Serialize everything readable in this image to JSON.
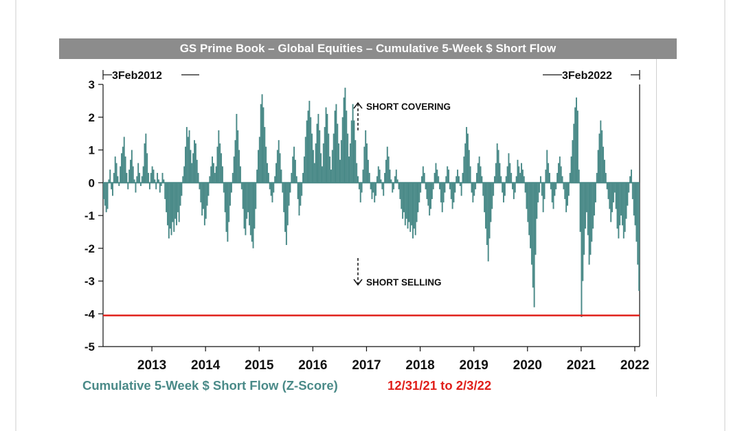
{
  "chart_data": {
    "type": "bar",
    "title": "GS Prime Book – Global Equities – Cumulative 5-Week $ Short Flow",
    "ylim": [
      -5,
      3
    ],
    "yticks": [
      3,
      2,
      1,
      0,
      -1,
      -2,
      -3,
      -4,
      -5
    ],
    "ytick_labels": [
      "3",
      "2",
      "1",
      "0",
      "-1",
      "-2",
      "-3",
      "-4",
      "-5"
    ],
    "xlim": [
      2012.09,
      2022.09
    ],
    "xticks": [
      2013,
      2014,
      2015,
      2016,
      2017,
      2018,
      2019,
      2020,
      2021,
      2022
    ],
    "xtick_labels": [
      "2013",
      "2014",
      "2015",
      "2016",
      "2017",
      "2018",
      "2019",
      "2020",
      "2021",
      "2022"
    ],
    "start_label": "3Feb2012",
    "end_label": "3Feb2022",
    "reference_line": {
      "y": -4.05,
      "color": "#e0201b"
    },
    "annotations": {
      "covering": "SHORT COVERING",
      "selling": "SHORT SELLING"
    },
    "legend": [
      {
        "label": "Cumulative 5-Week $ Short Flow (Z-Score)",
        "color": "#4a8a88"
      },
      {
        "label": "12/31/21 to 2/3/22",
        "color": "#e0201b"
      }
    ],
    "bar_color": "#4a8a88",
    "series": [
      {
        "name": "Cumulative 5-Week $ Short Flow (Z-Score)",
        "frequency": "weekly",
        "start": 2012.09,
        "values": [
          -0.5,
          -0.7,
          -0.9,
          -0.8,
          0.1,
          0.4,
          -0.2,
          -0.4,
          0.3,
          0.8,
          0.6,
          0.2,
          -0.1,
          0.5,
          0.9,
          1.1,
          1.4,
          0.8,
          0.3,
          -0.2,
          0.4,
          0.7,
          1.0,
          0.5,
          0.1,
          -0.3,
          0.2,
          0.6,
          0.3,
          -0.1,
          0.2,
          0.5,
          1.2,
          1.5,
          0.9,
          0.3,
          -0.2,
          0.3,
          0.5,
          0.4,
          0.1,
          -0.2,
          0.3,
          0.1,
          -0.3,
          -0.1,
          0.3,
          0.1,
          -0.5,
          -0.9,
          -1.3,
          -1.7,
          -1.4,
          -1.6,
          -1.2,
          -1.5,
          -1.1,
          -1.3,
          -0.9,
          -1.2,
          -0.7,
          -0.4,
          0.2,
          0.5,
          1.1,
          1.7,
          1.4,
          1.6,
          1.0,
          0.6,
          0.9,
          1.3,
          1.2,
          0.7,
          0.3,
          -0.2,
          -0.6,
          -1.0,
          -0.8,
          -1.3,
          -1.1,
          -0.7,
          -0.4,
          0.2,
          0.5,
          0.8,
          0.6,
          0.3,
          0.5,
          1.1,
          1.6,
          1.2,
          0.9,
          0.5,
          -0.3,
          -0.9,
          -1.5,
          -1.8,
          -1.2,
          -0.7,
          -0.3,
          0.3,
          0.8,
          1.3,
          2.1,
          1.6,
          1.0,
          0.5,
          -0.2,
          -0.8,
          -1.4,
          -1.6,
          -1.1,
          -0.9,
          -1.3,
          -1.6,
          -1.8,
          -2.0,
          -1.4,
          -0.8,
          0.4,
          1.0,
          1.4,
          2.4,
          2.7,
          2.3,
          1.7,
          1.1,
          0.6,
          0.3,
          -0.2,
          -0.4,
          -0.6,
          -0.3,
          0.2,
          0.6,
          1.0,
          1.3,
          0.9,
          0.4,
          -0.3,
          -0.9,
          -1.5,
          -1.9,
          -1.3,
          -0.7,
          -0.3,
          0.3,
          0.8,
          1.1,
          0.7,
          0.2,
          -0.5,
          -1.0,
          -0.7,
          -0.4,
          0.3,
          0.8,
          1.4,
          1.9,
          2.2,
          2.5,
          2.0,
          1.5,
          1.0,
          0.6,
          1.2,
          1.8,
          2.1,
          1.6,
          0.9,
          0.5,
          1.2,
          1.7,
          2.3,
          2.1,
          1.5,
          0.8,
          0.4,
          1.0,
          1.5,
          2.2,
          2.4,
          1.8,
          1.2,
          0.7,
          1.3,
          2.0,
          2.6,
          2.9,
          2.2,
          1.5,
          0.8,
          1.2,
          1.9,
          2.4,
          1.9,
          1.3,
          0.6,
          0.2,
          -0.2,
          -0.6,
          -0.3,
          0.4,
          1.1,
          1.6,
          1.2,
          0.7,
          0.3,
          -0.2,
          -0.5,
          -0.3,
          -0.6,
          -0.4,
          0.2,
          0.5,
          0.4,
          0.1,
          -0.2,
          -0.4,
          0.3,
          0.7,
          1.1,
          0.8,
          0.4,
          0.1,
          -0.3,
          -0.2,
          0.2,
          0.4,
          0.1,
          -0.2,
          -0.5,
          -0.8,
          -1.1,
          -0.9,
          -1.3,
          -1.1,
          -1.4,
          -1.2,
          -1.5,
          -1.3,
          -1.7,
          -1.4,
          -1.6,
          -1.2,
          -0.9,
          -0.6,
          -0.3,
          0.2,
          0.5,
          0.3,
          -0.2,
          -0.5,
          -0.7,
          -1.0,
          -0.8,
          -0.5,
          -0.2,
          0.3,
          0.6,
          0.4,
          0.2,
          -0.2,
          -0.6,
          -0.9,
          -0.6,
          -0.3,
          0.2,
          0.5,
          0.4,
          -0.2,
          -0.5,
          -0.8,
          -0.6,
          -0.3,
          0.2,
          0.4,
          0.2,
          -0.1,
          -0.4,
          0.3,
          0.8,
          1.2,
          1.7,
          1.5,
          1.0,
          0.5,
          -0.3,
          -0.6,
          -0.4,
          -0.2,
          0.3,
          0.6,
          0.8,
          0.5,
          0.2,
          -0.4,
          -0.9,
          -1.4,
          -1.9,
          -2.4,
          -1.7,
          -1.2,
          -0.8,
          -0.4,
          0.2,
          0.6,
          1.2,
          1.0,
          0.6,
          0.2,
          -0.3,
          -0.6,
          -0.4,
          0.2,
          0.5,
          0.9,
          0.6,
          0.3,
          -0.2,
          -0.5,
          -0.3,
          0.2,
          0.7,
          0.5,
          0.3,
          0.6,
          0.4,
          0.2,
          -0.3,
          -0.8,
          -1.2,
          -1.6,
          -2.0,
          -2.5,
          -3.2,
          -3.8,
          -2.2,
          -1.1,
          -0.6,
          -0.3,
          0.2,
          -0.4,
          -0.9,
          -0.5,
          0.4,
          1.0,
          0.6,
          0.3,
          -0.2,
          -0.6,
          -0.8,
          -0.4,
          -0.2,
          0.3,
          0.6,
          0.8,
          0.5,
          0.2,
          -0.2,
          -0.5,
          -0.9,
          -0.7,
          -0.4,
          0.3,
          0.8,
          1.3,
          1.8,
          2.3,
          2.6,
          2.2,
          0.4,
          -1.5,
          -4.1,
          -3.0,
          -2.2,
          -1.4,
          -0.9,
          -1.6,
          -2.5,
          -2.2,
          -1.8,
          -1.4,
          -1.0,
          -0.6,
          0.3,
          1.0,
          1.5,
          1.9,
          1.6,
          1.1,
          0.7,
          0.3,
          -0.2,
          -0.5,
          -0.8,
          -1.2,
          -0.9,
          -0.6,
          -0.3,
          -0.8,
          -1.4,
          -1.7,
          -1.3,
          -1.0,
          -1.3,
          -1.7,
          -1.5,
          -1.1,
          -0.7,
          -0.3,
          0.2,
          0.4,
          -0.5,
          -1.0,
          -1.3,
          -1.8,
          -2.5,
          -3.3
        ]
      }
    ]
  }
}
